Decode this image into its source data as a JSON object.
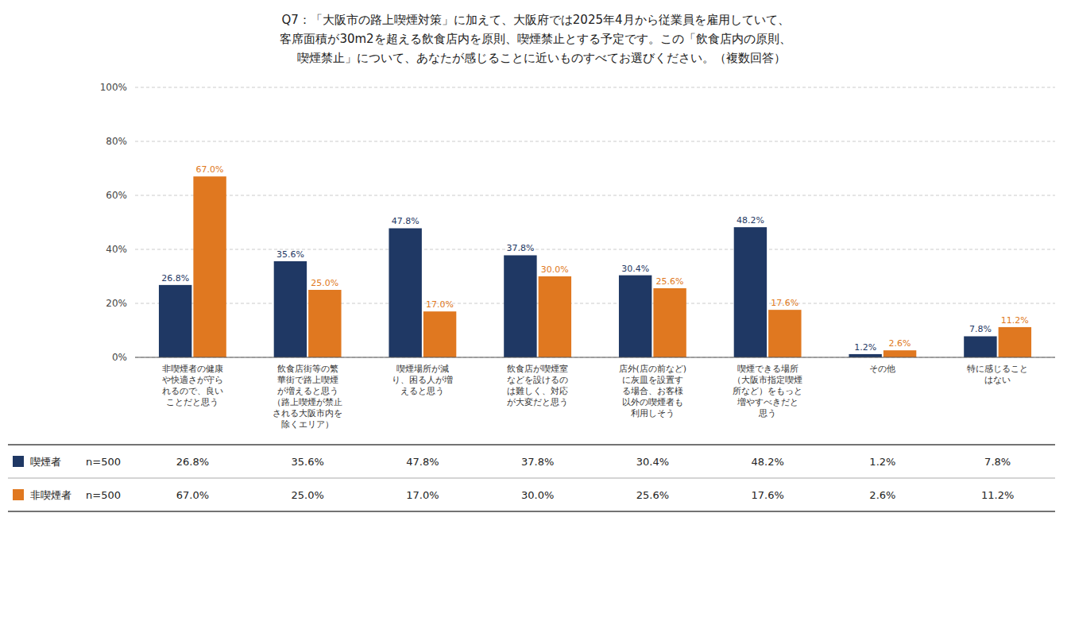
{
  "chart_data": {
    "type": "bar",
    "title": "Q7：「大阪市の路上喫煙対策」に加えて、大阪府では2025年4月から従業員を雇用していて、\n客席面積が30m2を超える飲食店内を原則、喫煙禁止とする予定です。この「飲食店内の原則、\n　喫煙禁止」について、あなたが感じることに近いものすべてお選びください。（複数回答）",
    "categories": [
      "非喫煙者の健康\nや快適さが守ら\nれるので、良い\nことだと思う",
      "飲食店街等の繁\n華街で路上喫煙\nが増えると思う\n（路上喫煙が禁止\nされる大阪市内を\n除くエリア）",
      "喫煙場所が減\nり、困る人が増\nえると思う",
      "飲食店が喫煙室\nなどを設けるの\nは難しく、対応\nが大変だと思う",
      "店外(店の前など)\nに灰皿を設置す\nる場合、お客様\n以外の喫煙者も\n利用しそう",
      "喫煙できる場所\n（大阪市指定喫煙\n所など）をもっと\n増やすべきだと\n思う",
      "その他",
      "特に感じること\nはない"
    ],
    "series": [
      {
        "name": "喫煙者",
        "color": "#1f3864",
        "values": [
          26.8,
          35.6,
          47.8,
          37.8,
          30.4,
          48.2,
          1.2,
          7.8
        ],
        "value_labels": [
          "26.8%",
          "35.6%",
          "47.8%",
          "37.8%",
          "30.4%",
          "48.2%",
          "1.2%",
          "7.8%"
        ]
      },
      {
        "name": "非喫煙者",
        "color": "#e07820",
        "values": [
          67.0,
          25.0,
          17.0,
          30.0,
          25.6,
          17.6,
          2.6,
          11.2
        ],
        "value_labels": [
          "67.0%",
          "25.0%",
          "17.0%",
          "30.0%",
          "25.6%",
          "17.6%",
          "2.6%",
          "11.2%"
        ]
      }
    ],
    "annotations": [
      "n=500"
    ],
    "ylim": [
      0,
      100
    ],
    "yticks": [
      {
        "value": 0,
        "label": "0%"
      },
      {
        "value": 20,
        "label": "20%"
      },
      {
        "value": 40,
        "label": "40%"
      },
      {
        "value": 60,
        "label": "60%"
      },
      {
        "value": 80,
        "label": "80%"
      },
      {
        "value": 100,
        "label": "100%"
      }
    ],
    "grid": true,
    "data_labels": true,
    "legend": "bottom"
  }
}
